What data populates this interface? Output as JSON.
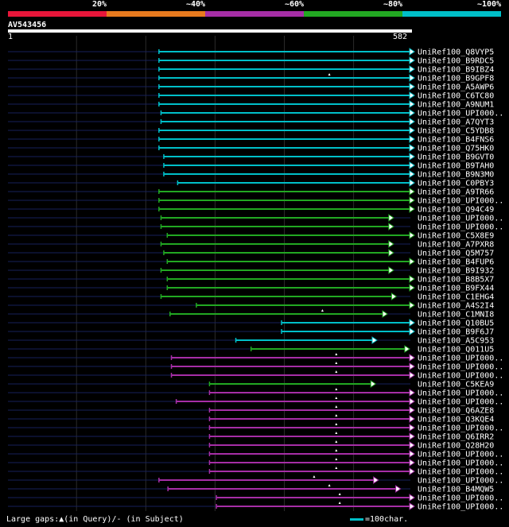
{
  "legend": {
    "segments": [
      {
        "label": "20%",
        "color": "#e8163a"
      },
      {
        "label": "~40%",
        "color": "#e87a1e"
      },
      {
        "label": "~60%",
        "color": "#a62ea6"
      },
      {
        "label": "~80%",
        "color": "#22a822"
      },
      {
        "label": "~100%",
        "color": "#00bfc8"
      }
    ]
  },
  "query": {
    "name": "AV543456",
    "start": "1",
    "end": "582"
  },
  "hits": [
    {
      "name": "UniRef100_Q8VYP5",
      "start": 219,
      "end": 582,
      "color": "#00bfc8",
      "gaps": []
    },
    {
      "name": "UniRef100_B9RDC5",
      "start": 219,
      "end": 582,
      "color": "#00bfc8",
      "gaps": []
    },
    {
      "name": "UniRef100_B9IBZ4",
      "start": 219,
      "end": 582,
      "color": "#00bfc8",
      "gaps": []
    },
    {
      "name": "UniRef100_B9GPF8",
      "start": 219,
      "end": 582,
      "color": "#00bfc8",
      "gaps": [
        465
      ]
    },
    {
      "name": "UniRef100_A5AWP6",
      "start": 219,
      "end": 582,
      "color": "#00bfc8",
      "gaps": []
    },
    {
      "name": "UniRef100_C6TC80",
      "start": 219,
      "end": 582,
      "color": "#00bfc8",
      "gaps": []
    },
    {
      "name": "UniRef100_A9NUM1",
      "start": 219,
      "end": 582,
      "color": "#00bfc8",
      "gaps": []
    },
    {
      "name": "UniRef100_UPI000..",
      "start": 222,
      "end": 582,
      "color": "#00bfc8",
      "gaps": []
    },
    {
      "name": "UniRef100_A7QYT3",
      "start": 222,
      "end": 582,
      "color": "#00bfc8",
      "gaps": []
    },
    {
      "name": "UniRef100_C5YDB8",
      "start": 219,
      "end": 582,
      "color": "#00bfc8",
      "gaps": []
    },
    {
      "name": "UniRef100_B4FNS6",
      "start": 219,
      "end": 582,
      "color": "#00bfc8",
      "gaps": []
    },
    {
      "name": "UniRef100_Q75HK0",
      "start": 219,
      "end": 582,
      "color": "#00bfc8",
      "gaps": []
    },
    {
      "name": "UniRef100_B9GVT0",
      "start": 226,
      "end": 582,
      "color": "#00bfc8",
      "gaps": []
    },
    {
      "name": "UniRef100_B9TAH0",
      "start": 226,
      "end": 582,
      "color": "#00bfc8",
      "gaps": []
    },
    {
      "name": "UniRef100_B9N3M0",
      "start": 226,
      "end": 582,
      "color": "#00bfc8",
      "gaps": []
    },
    {
      "name": "UniRef100_C0PBY3",
      "start": 246,
      "end": 582,
      "color": "#00bfc8",
      "gaps": []
    },
    {
      "name": "UniRef100_A9TR66",
      "start": 219,
      "end": 582,
      "color": "#22a822",
      "gaps": []
    },
    {
      "name": "UniRef100_UPI000..",
      "start": 219,
      "end": 582,
      "color": "#22a822",
      "gaps": []
    },
    {
      "name": "UniRef100_Q94C49",
      "start": 219,
      "end": 582,
      "color": "#22a822",
      "gaps": []
    },
    {
      "name": "UniRef100_UPI000..",
      "start": 222,
      "end": 552,
      "color": "#22a822",
      "gaps": []
    },
    {
      "name": "UniRef100_UPI000..",
      "start": 222,
      "end": 552,
      "color": "#22a822",
      "gaps": []
    },
    {
      "name": "UniRef100_C5X8E9",
      "start": 231,
      "end": 582,
      "color": "#22a822",
      "gaps": []
    },
    {
      "name": "UniRef100_A7PXR8",
      "start": 222,
      "end": 552,
      "color": "#22a822",
      "gaps": []
    },
    {
      "name": "UniRef100_Q5M757",
      "start": 226,
      "end": 552,
      "color": "#22a822",
      "gaps": []
    },
    {
      "name": "UniRef100_B4FUP6",
      "start": 231,
      "end": 582,
      "color": "#22a822",
      "gaps": []
    },
    {
      "name": "UniRef100_B9I932",
      "start": 222,
      "end": 552,
      "color": "#22a822",
      "gaps": []
    },
    {
      "name": "UniRef100_B8B5X7",
      "start": 231,
      "end": 582,
      "color": "#22a822",
      "gaps": []
    },
    {
      "name": "UniRef100_B9FX44",
      "start": 231,
      "end": 582,
      "color": "#22a822",
      "gaps": []
    },
    {
      "name": "UniRef100_C1EHG4",
      "start": 222,
      "end": 556,
      "color": "#22a822",
      "gaps": []
    },
    {
      "name": "UniRef100_A4S2I4",
      "start": 273,
      "end": 582,
      "color": "#22a822",
      "gaps": []
    },
    {
      "name": "UniRef100_C1MNI8",
      "start": 235,
      "end": 543,
      "color": "#22a822",
      "gaps": [
        455
      ]
    },
    {
      "name": "UniRef100_Q10BU5",
      "start": 396,
      "end": 582,
      "color": "#00bfc8",
      "gaps": []
    },
    {
      "name": "UniRef100_B9F6J7",
      "start": 396,
      "end": 582,
      "color": "#00bfc8",
      "gaps": []
    },
    {
      "name": "UniRef100_A5C953",
      "start": 330,
      "end": 528,
      "color": "#00bfc8",
      "gaps": []
    },
    {
      "name": "UniRef100_Q011U5",
      "start": 352,
      "end": 575,
      "color": "#22a822",
      "gaps": []
    },
    {
      "name": "UniRef100_UPI000..",
      "start": 237,
      "end": 582,
      "color": "#a62ea6",
      "gaps": [
        475
      ]
    },
    {
      "name": "UniRef100_UPI000..",
      "start": 237,
      "end": 582,
      "color": "#a62ea6",
      "gaps": [
        475
      ]
    },
    {
      "name": "UniRef100_UPI000..",
      "start": 237,
      "end": 582,
      "color": "#a62ea6",
      "gaps": [
        475
      ]
    },
    {
      "name": "UniRef100_C5KEA9",
      "start": 292,
      "end": 526,
      "color": "#22a822",
      "gaps": []
    },
    {
      "name": "UniRef100_UPI000..",
      "start": 292,
      "end": 582,
      "color": "#a62ea6",
      "gaps": [
        475
      ]
    },
    {
      "name": "UniRef100_UPI000..",
      "start": 244,
      "end": 582,
      "color": "#a62ea6",
      "gaps": [
        475
      ]
    },
    {
      "name": "UniRef100_Q6AZE8",
      "start": 292,
      "end": 582,
      "color": "#a62ea6",
      "gaps": [
        475
      ]
    },
    {
      "name": "UniRef100_Q3KQE4",
      "start": 292,
      "end": 582,
      "color": "#a62ea6",
      "gaps": [
        475
      ]
    },
    {
      "name": "UniRef100_UPI000..",
      "start": 292,
      "end": 582,
      "color": "#a62ea6",
      "gaps": [
        475
      ]
    },
    {
      "name": "UniRef100_Q6IRR2",
      "start": 292,
      "end": 582,
      "color": "#a62ea6",
      "gaps": [
        475
      ]
    },
    {
      "name": "UniRef100_Q28H20",
      "start": 292,
      "end": 582,
      "color": "#a62ea6",
      "gaps": [
        475
      ]
    },
    {
      "name": "UniRef100_UPI000..",
      "start": 292,
      "end": 582,
      "color": "#a62ea6",
      "gaps": [
        475
      ]
    },
    {
      "name": "UniRef100_UPI000..",
      "start": 292,
      "end": 582,
      "color": "#a62ea6",
      "gaps": [
        475
      ]
    },
    {
      "name": "UniRef100_UPI000..",
      "start": 292,
      "end": 582,
      "color": "#a62ea6",
      "gaps": [
        475
      ]
    },
    {
      "name": "UniRef100_UPI000..",
      "start": 219,
      "end": 530,
      "color": "#a62ea6",
      "gaps": [
        443
      ]
    },
    {
      "name": "UniRef100_B4MQW5",
      "start": 232,
      "end": 562,
      "color": "#a62ea6",
      "gaps": [
        465
      ]
    },
    {
      "name": "UniRef100_UPI000..",
      "start": 302,
      "end": 582,
      "color": "#a62ea6",
      "gaps": [
        480
      ]
    },
    {
      "name": "UniRef100_UPI000..",
      "start": 302,
      "end": 582,
      "color": "#a62ea6",
      "gaps": [
        480
      ]
    }
  ],
  "footer": {
    "gaps_legend": "Large gaps:▲(in Query)/- (in Subject)",
    "scale_legend": "=100char."
  }
}
